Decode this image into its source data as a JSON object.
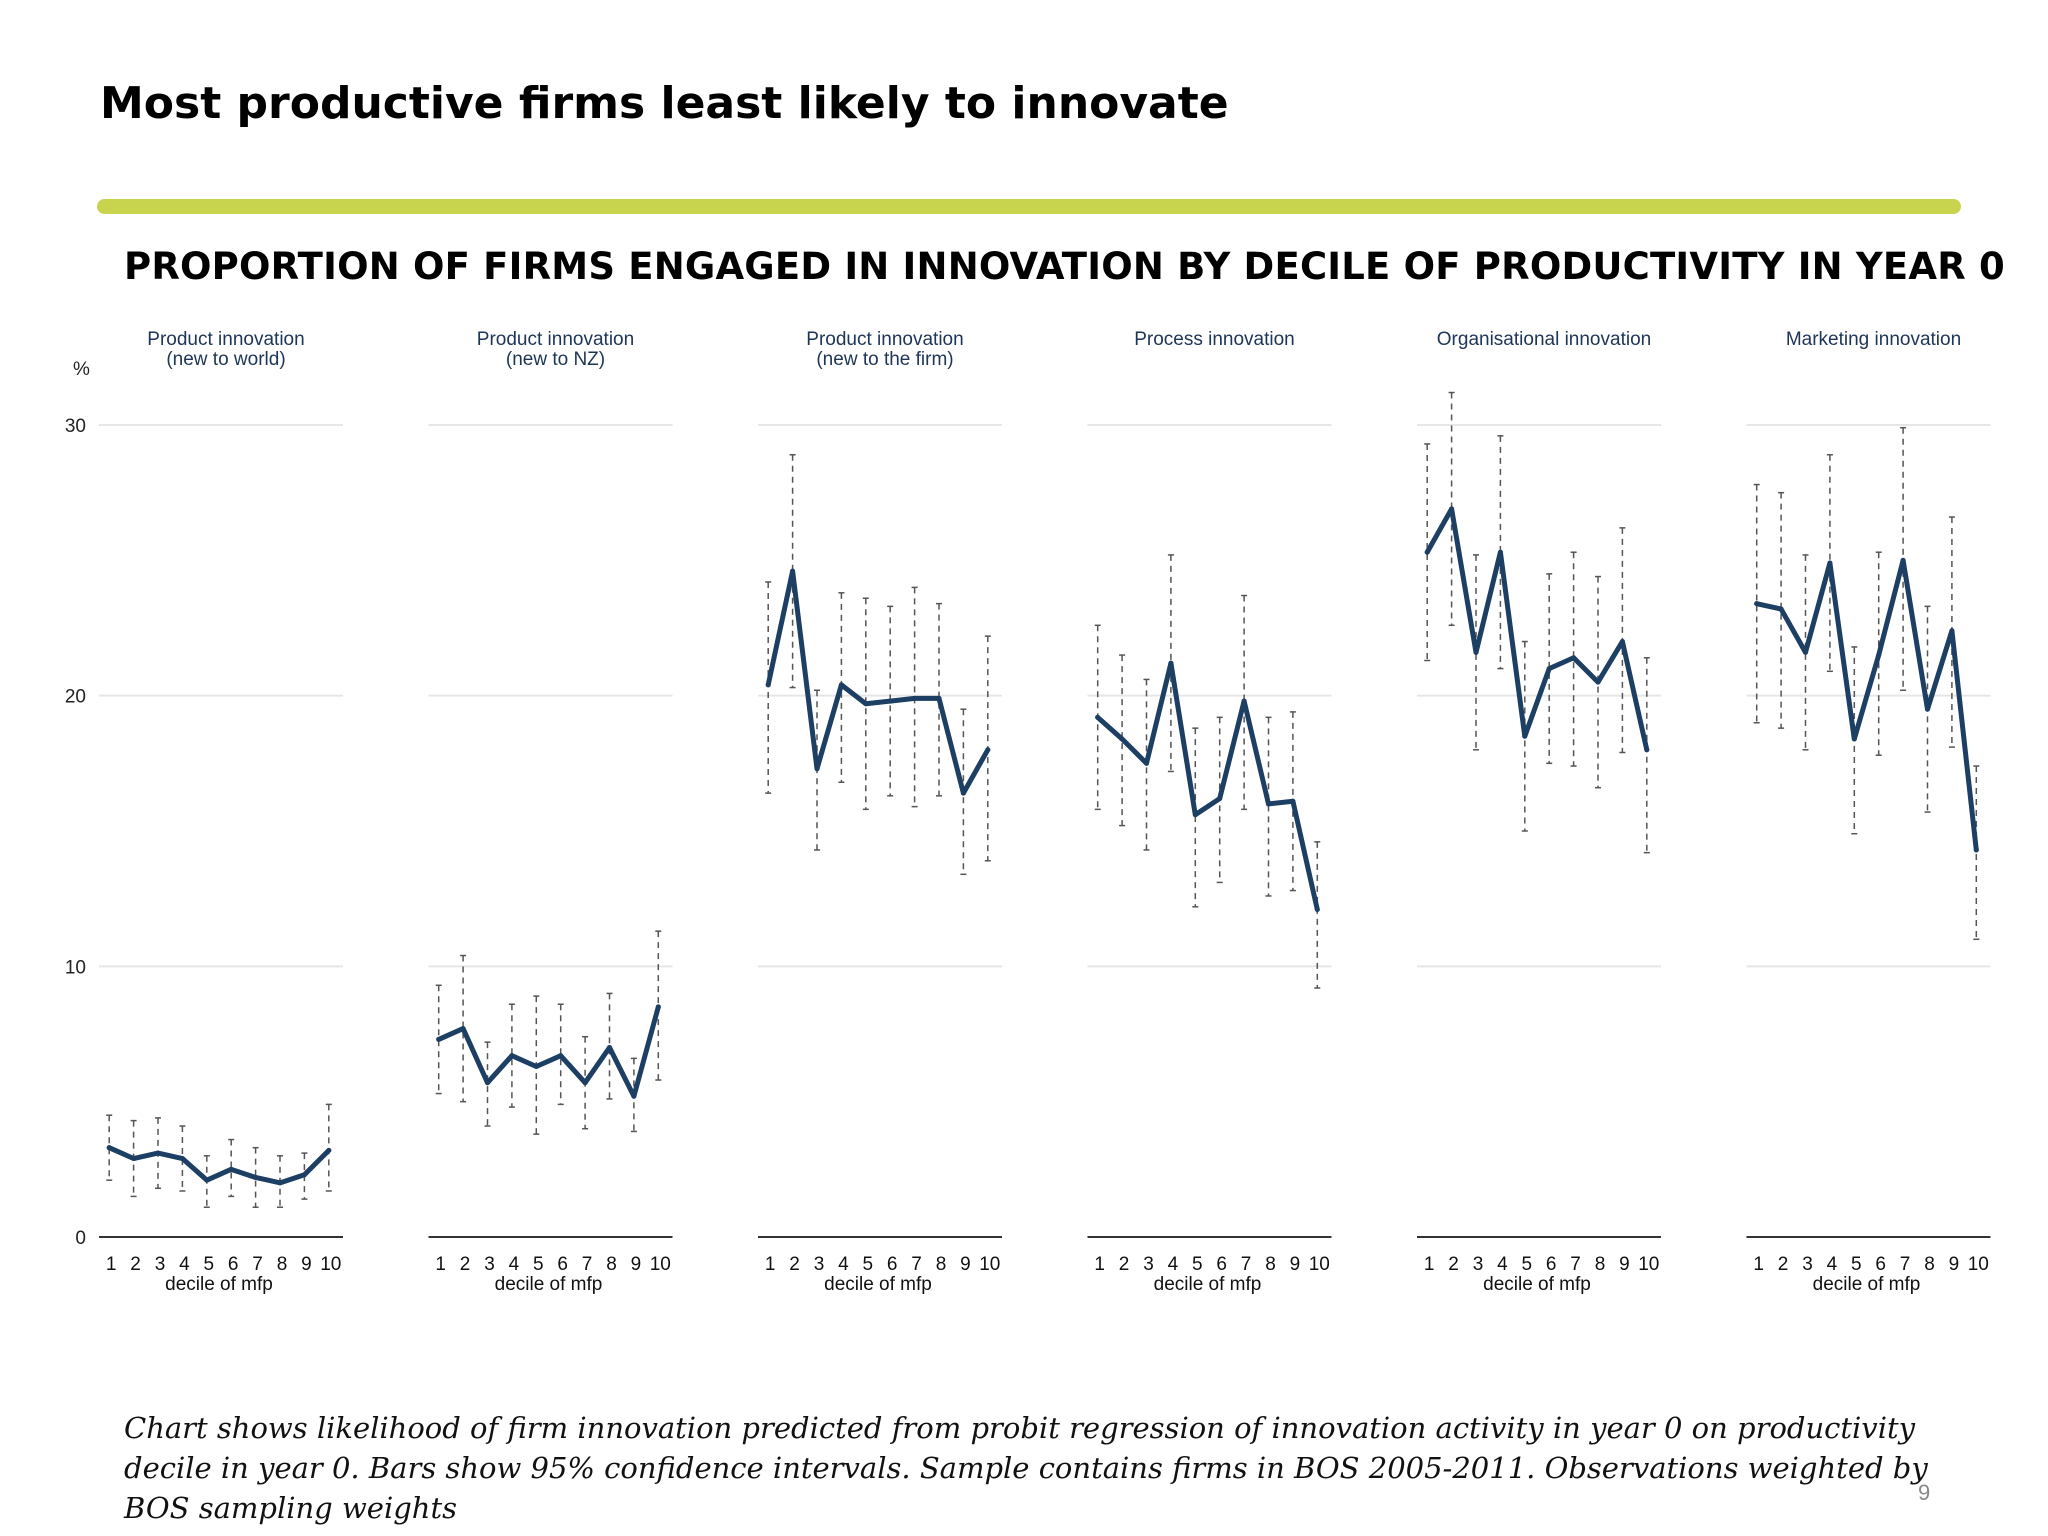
{
  "slide": {
    "title": "Most productive firms least likely to innovate",
    "caption": "Chart shows likelihood of firm innovation predicted from probit regression of innovation activity in year 0 on productivity decile in year 0. Bars show 95% confidence intervals. Sample contains firms in BOS 2005-2011. Observations weighted by BOS sampling weights",
    "page_number": "9",
    "accent_color": "#c8d34e"
  },
  "chart_data": {
    "type": "line",
    "title": "PROPORTION OF FIRMS ENGAGED IN INNOVATION BY DECILE OF PRODUCTIVITY IN YEAR 0",
    "ylabel": "%",
    "xlabel": "decile of mfp",
    "ylim": [
      0,
      30
    ],
    "yticks": [
      0,
      10,
      20,
      30
    ],
    "categories": [
      "1",
      "2",
      "3",
      "4",
      "5",
      "6",
      "7",
      "8",
      "9",
      "10"
    ],
    "grid": true,
    "line_color": "#1d3f63",
    "ci_color": "#555555",
    "panels": [
      {
        "title_lines": [
          "Product innovation",
          "(new to world)"
        ],
        "values": [
          3.3,
          2.9,
          3.1,
          2.9,
          2.1,
          2.5,
          2.2,
          2.0,
          2.3,
          3.2
        ],
        "lower": [
          2.1,
          1.5,
          1.8,
          1.7,
          1.1,
          1.5,
          1.1,
          1.1,
          1.4,
          1.7
        ],
        "upper": [
          4.5,
          4.3,
          4.4,
          4.1,
          3.0,
          3.6,
          3.3,
          3.0,
          3.1,
          4.9
        ]
      },
      {
        "title_lines": [
          "Product innovation",
          "(new to NZ)"
        ],
        "values": [
          7.3,
          7.7,
          5.7,
          6.7,
          6.3,
          6.7,
          5.7,
          7.0,
          5.2,
          8.5
        ],
        "lower": [
          5.3,
          5.0,
          4.1,
          4.8,
          3.8,
          4.9,
          4.0,
          5.1,
          3.9,
          5.8
        ],
        "upper": [
          9.3,
          10.4,
          7.2,
          8.6,
          8.9,
          8.6,
          7.4,
          9.0,
          6.6,
          11.3
        ]
      },
      {
        "title_lines": [
          "Product innovation",
          "(new to the firm)"
        ],
        "values": [
          20.4,
          24.6,
          17.3,
          20.4,
          19.7,
          19.8,
          19.9,
          19.9,
          16.4,
          18.0
        ],
        "lower": [
          16.4,
          20.3,
          14.3,
          16.8,
          15.8,
          16.3,
          15.9,
          16.3,
          13.4,
          13.9
        ],
        "upper": [
          24.2,
          28.9,
          20.2,
          23.8,
          23.6,
          23.3,
          24.0,
          23.4,
          19.5,
          22.2
        ]
      },
      {
        "title_lines": [
          "Process innovation"
        ],
        "values": [
          19.2,
          18.4,
          17.5,
          21.2,
          15.6,
          16.2,
          19.8,
          16.0,
          16.1,
          12.1
        ],
        "lower": [
          15.8,
          15.2,
          14.3,
          17.2,
          12.2,
          13.1,
          15.8,
          12.6,
          12.8,
          9.2
        ],
        "upper": [
          22.6,
          21.5,
          20.6,
          25.2,
          18.8,
          19.2,
          23.7,
          19.2,
          19.4,
          14.6
        ]
      },
      {
        "title_lines": [
          "Organisational innovation"
        ],
        "values": [
          25.3,
          26.9,
          21.6,
          25.3,
          18.5,
          21.0,
          21.4,
          20.5,
          22.0,
          18.0
        ],
        "lower": [
          21.3,
          22.6,
          18.0,
          21.0,
          15.0,
          17.5,
          17.4,
          16.6,
          17.9,
          14.2
        ],
        "upper": [
          29.3,
          31.2,
          25.2,
          29.6,
          22.0,
          24.5,
          25.3,
          24.4,
          26.2,
          21.4
        ]
      },
      {
        "title_lines": [
          "Marketing innovation"
        ],
        "values": [
          23.4,
          23.2,
          21.6,
          24.9,
          18.4,
          21.5,
          25.0,
          19.5,
          22.4,
          14.3
        ],
        "lower": [
          19.0,
          18.8,
          18.0,
          20.9,
          14.9,
          17.8,
          20.2,
          15.7,
          18.1,
          11.0
        ],
        "upper": [
          27.8,
          27.5,
          25.2,
          28.9,
          21.8,
          25.3,
          29.9,
          23.3,
          26.6,
          17.4
        ]
      }
    ]
  }
}
